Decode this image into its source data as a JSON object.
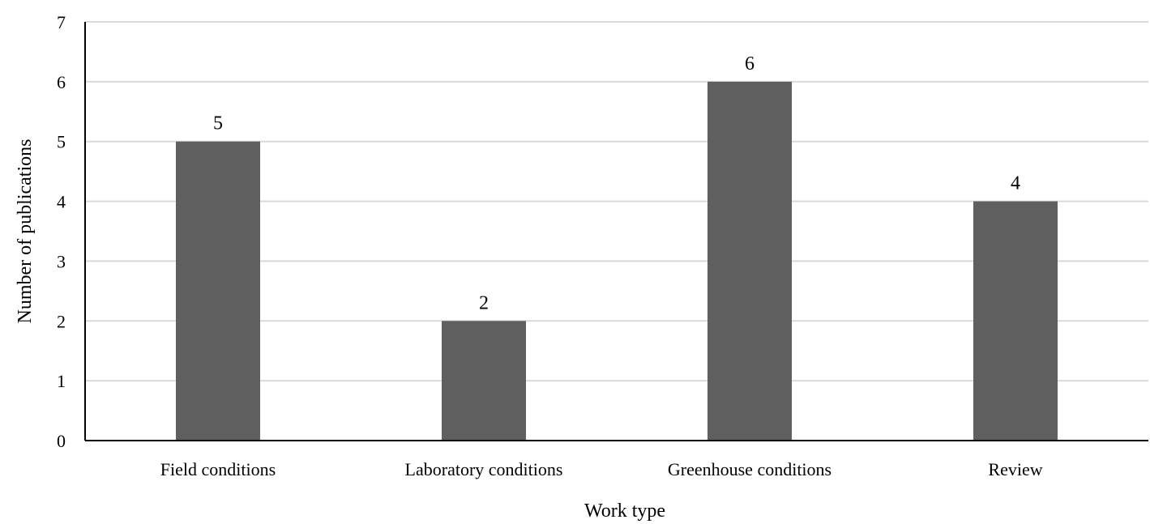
{
  "chart_data": {
    "type": "bar",
    "title": "",
    "xlabel": "Work type",
    "ylabel": "Number of publications",
    "categories": [
      "Field conditions",
      "Laboratory conditions",
      "Greenhouse conditions",
      "Review"
    ],
    "values": [
      5,
      2,
      6,
      4
    ],
    "data_labels": [
      "5",
      "2",
      "6",
      "4"
    ],
    "ylim": [
      0,
      7
    ],
    "yticks": [
      "0",
      "1",
      "2",
      "3",
      "4",
      "5",
      "6",
      "7"
    ],
    "grid": true,
    "legend": "none",
    "bar_color": "#5f5f5f",
    "grid_color": "#d9d9d9",
    "axis_color": "#000000"
  }
}
